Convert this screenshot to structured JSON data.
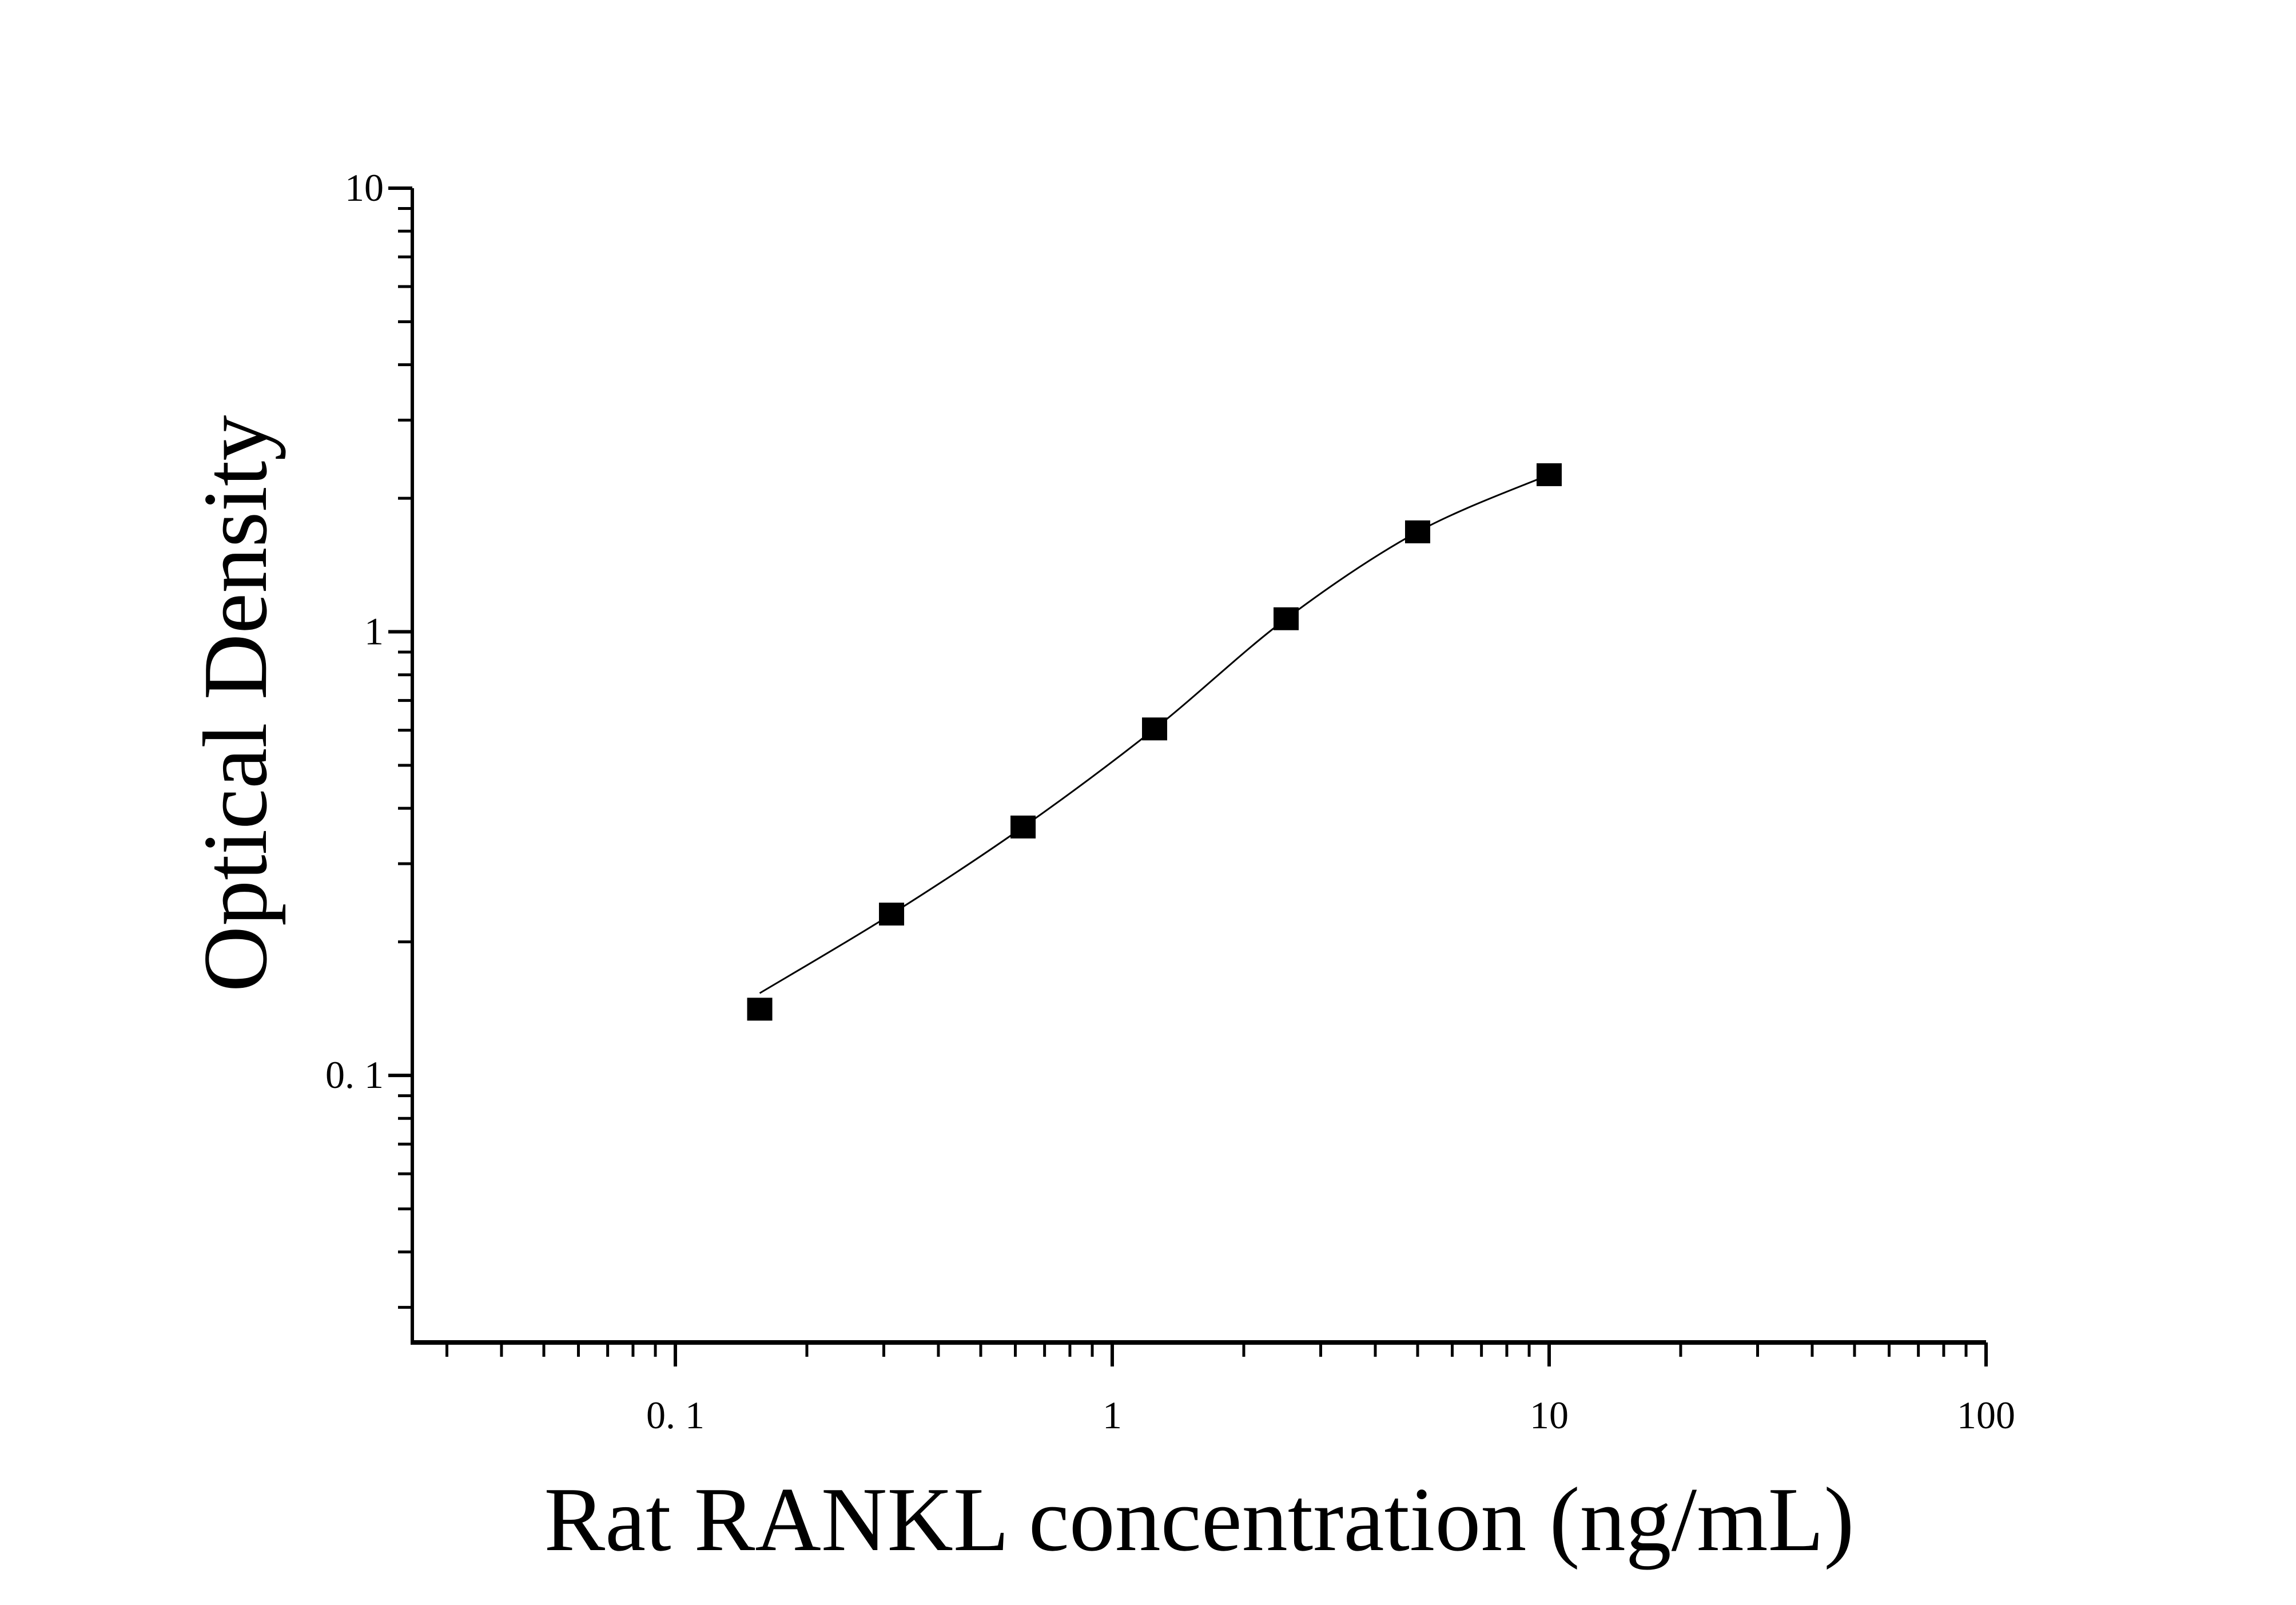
{
  "chart_data": {
    "type": "scatter",
    "title": "",
    "xlabel": "Rat RANKL concentration (ng/mL)",
    "ylabel": "Optical Density",
    "x_scale": "log",
    "y_scale": "log",
    "xlim": [
      0.025,
      100
    ],
    "ylim": [
      0.025,
      10
    ],
    "x_ticks": [
      {
        "value": 0.1,
        "label": "0. 1"
      },
      {
        "value": 1,
        "label": "1"
      },
      {
        "value": 10,
        "label": "10"
      },
      {
        "value": 100,
        "label": "100"
      }
    ],
    "y_ticks": [
      {
        "value": 0.1,
        "label": "0. 1"
      },
      {
        "value": 1,
        "label": "1"
      },
      {
        "value": 10,
        "label": "10"
      }
    ],
    "grid": false,
    "marker": "square",
    "fit_curve": true,
    "color": "#000000",
    "series": [
      {
        "x": [
          0.156,
          0.3125,
          0.625,
          1.25,
          2.5,
          5,
          10
        ],
        "y": [
          0.141,
          0.231,
          0.363,
          0.604,
          1.07,
          1.68,
          2.26
        ]
      }
    ]
  }
}
